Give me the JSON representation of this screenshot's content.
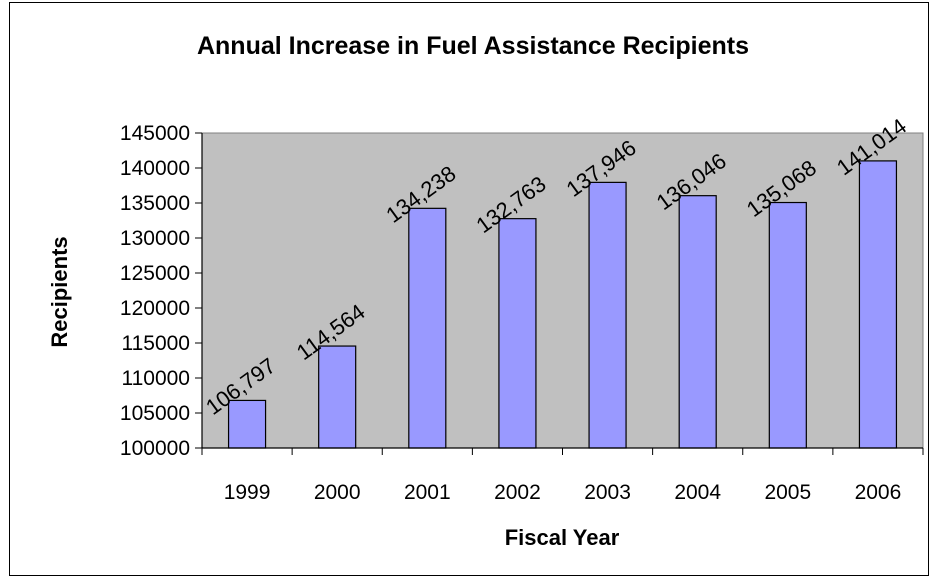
{
  "chart_data": {
    "type": "bar",
    "title": "Annual Increase in Fuel Assistance Recipients",
    "xlabel": "Fiscal Year",
    "ylabel": "Recipients",
    "categories": [
      "1999",
      "2000",
      "2001",
      "2002",
      "2003",
      "2004",
      "2005",
      "2006"
    ],
    "values": [
      106797,
      114564,
      134238,
      132763,
      137946,
      136046,
      135068,
      141014
    ],
    "data_labels": [
      "106,797",
      "114,564",
      "134,238",
      "132,763",
      "137,946",
      "136,046",
      "135,068",
      "141,014"
    ],
    "ylim": [
      100000,
      145000
    ],
    "yticks": [
      "100000",
      "105000",
      "110000",
      "115000",
      "120000",
      "125000",
      "130000",
      "135000",
      "140000",
      "145000"
    ],
    "grid": false,
    "legend": "none",
    "colors": {
      "bar": "#9999ff",
      "plot_bg": "#c0c0c0",
      "bar_border": "#000000"
    }
  }
}
